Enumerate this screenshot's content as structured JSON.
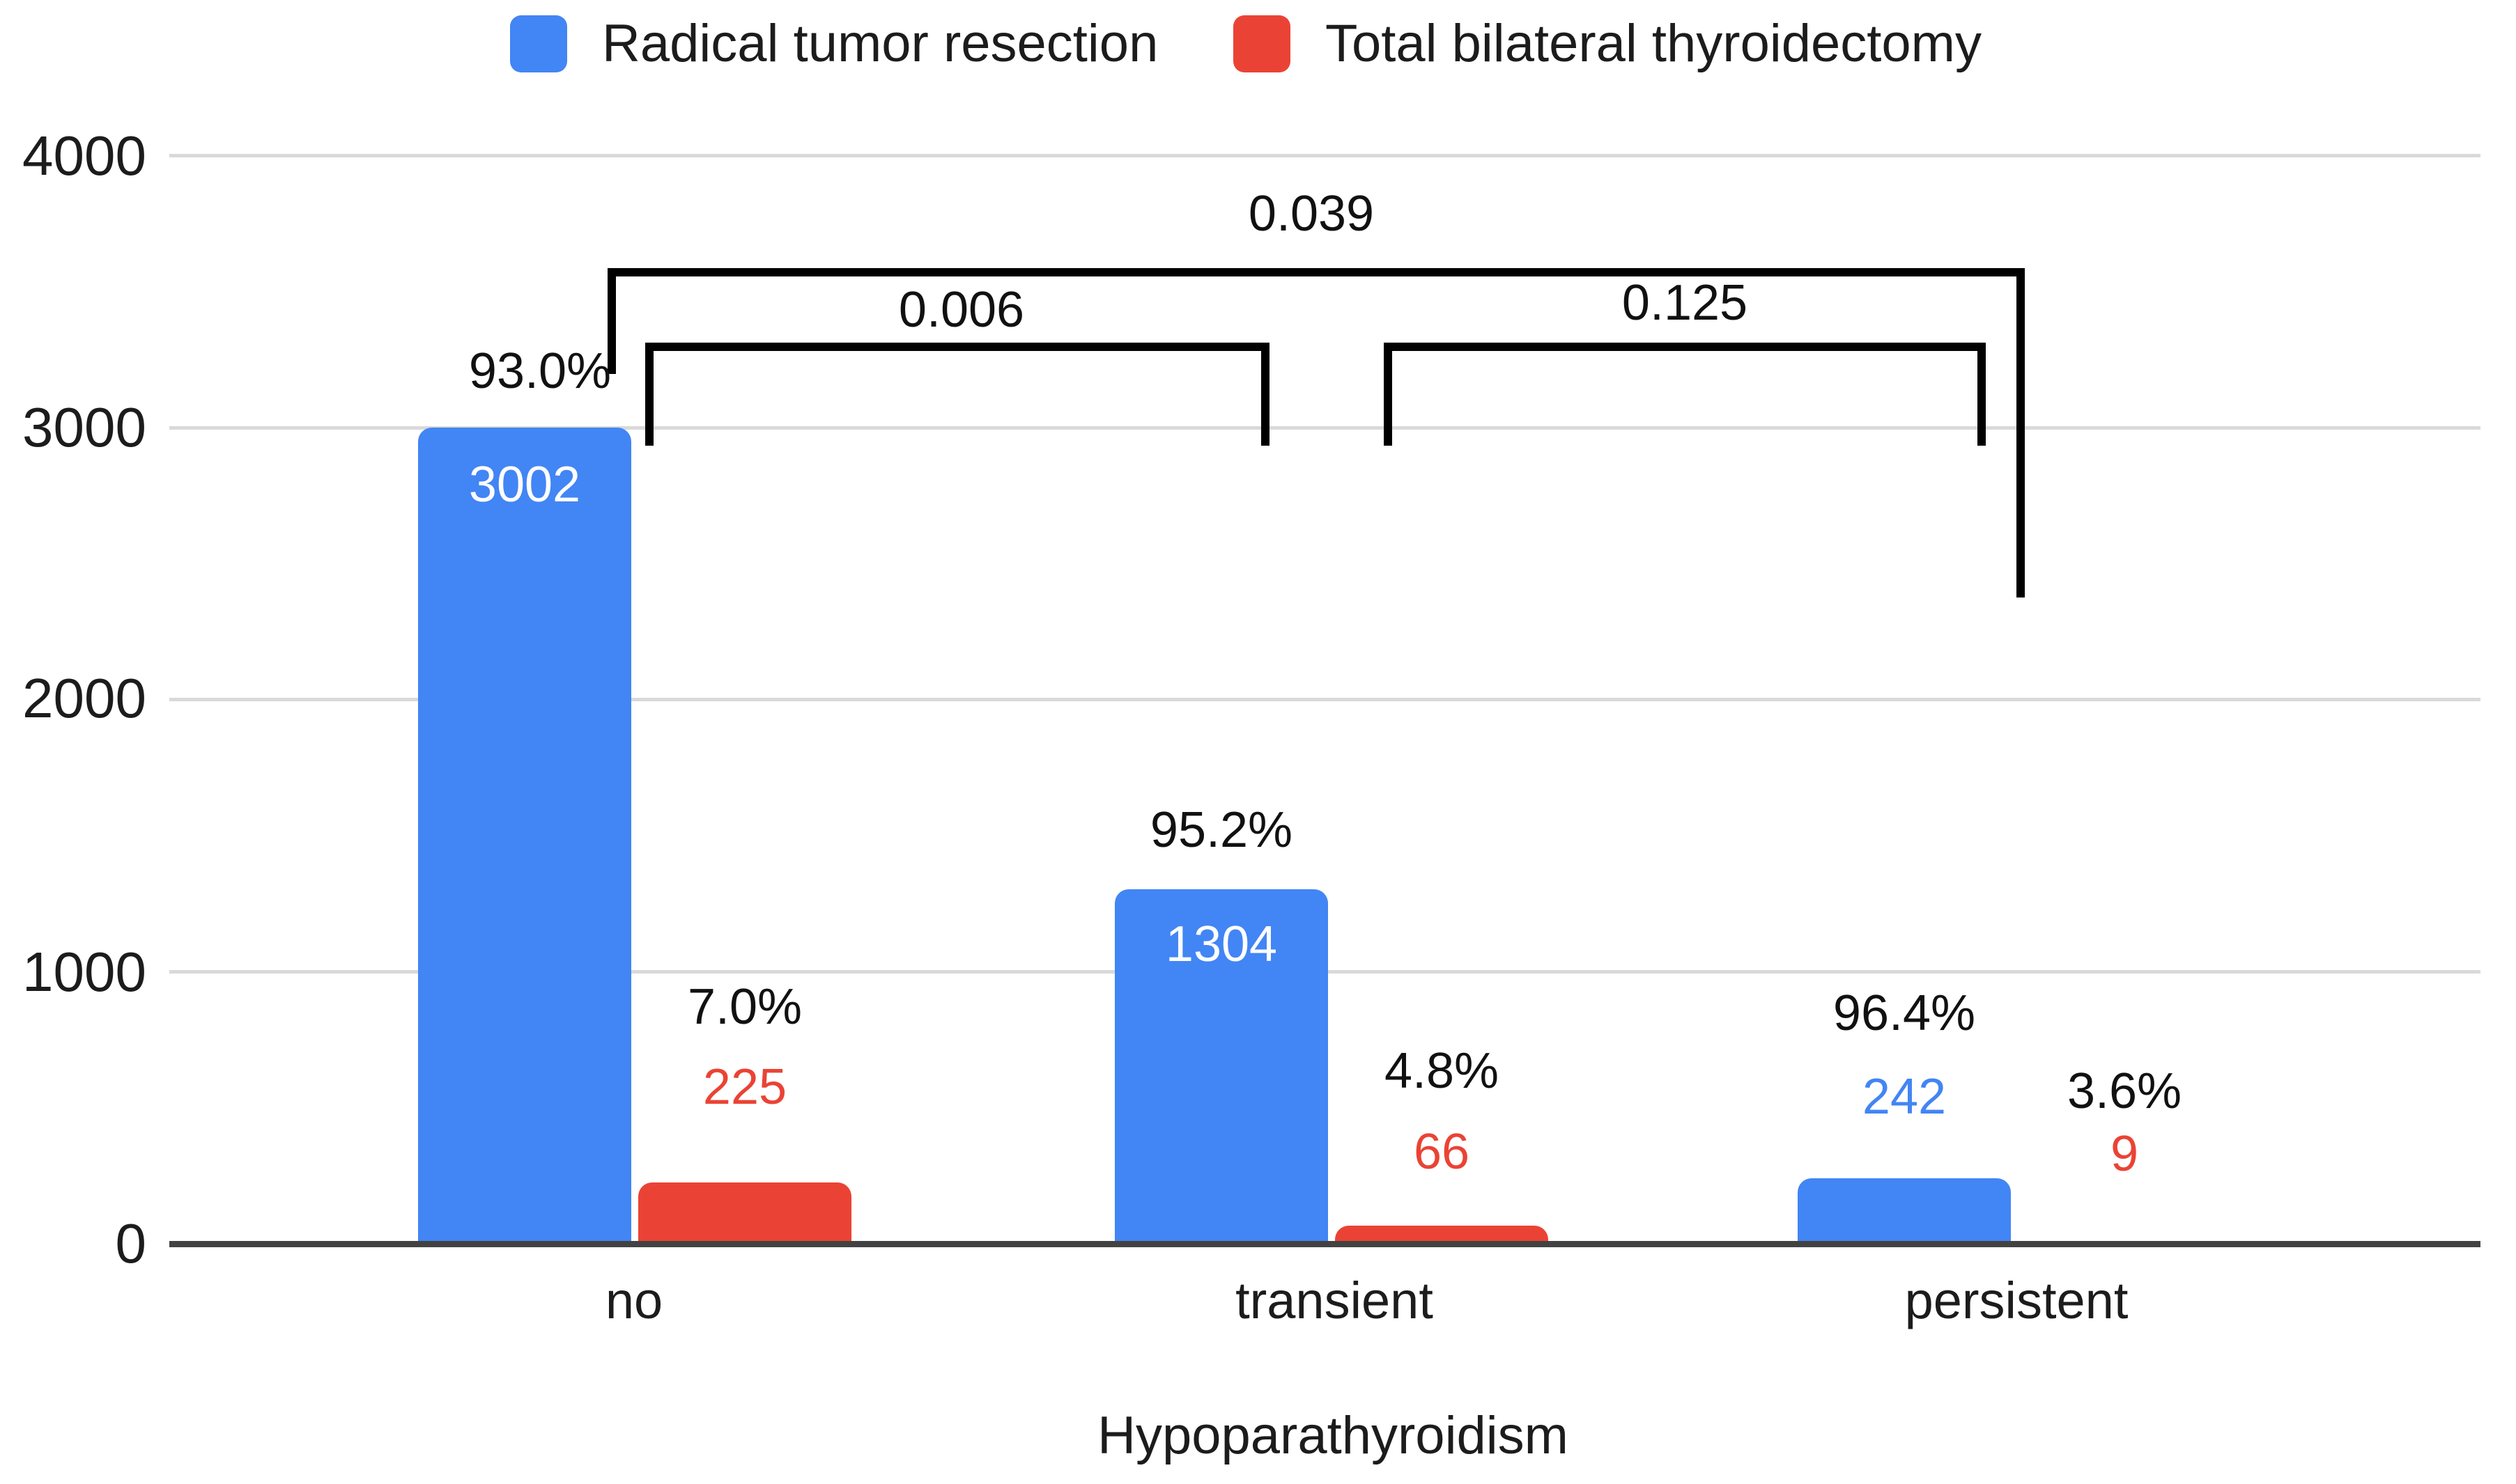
{
  "chart_data": {
    "type": "bar",
    "title": "",
    "xlabel": "Hypoparathyroidism",
    "ylabel": "",
    "ylim": [
      0,
      4000
    ],
    "grid": true,
    "legend_position": "top",
    "y_ticks": [
      "4000",
      "3000",
      "2000",
      "1000",
      "0"
    ],
    "categories": [
      "no",
      "transient",
      "persistent"
    ],
    "series": [
      {
        "name": "Radical tumor resection",
        "color": "#4285F4",
        "values": [
          3002,
          1304,
          242
        ],
        "percent_labels": [
          "93.0%",
          "95.2%",
          "96.4%"
        ]
      },
      {
        "name": "Total bilateral thyroidectomy",
        "color": "#EA4335",
        "values": [
          225,
          66,
          9
        ],
        "percent_labels": [
          "7.0%",
          "4.8%",
          "3.6%"
        ]
      }
    ],
    "significance_brackets": [
      {
        "label": "0.039",
        "between": [
          "no",
          "persistent"
        ]
      },
      {
        "label": "0.006",
        "between": [
          "no",
          "transient"
        ]
      },
      {
        "label": "0.125",
        "between": [
          "transient",
          "persistent"
        ]
      }
    ],
    "colors": {
      "grid_line": "#d9d9d9",
      "axis_line": "#424242",
      "in_bar_label": "#fdfdfd"
    }
  }
}
